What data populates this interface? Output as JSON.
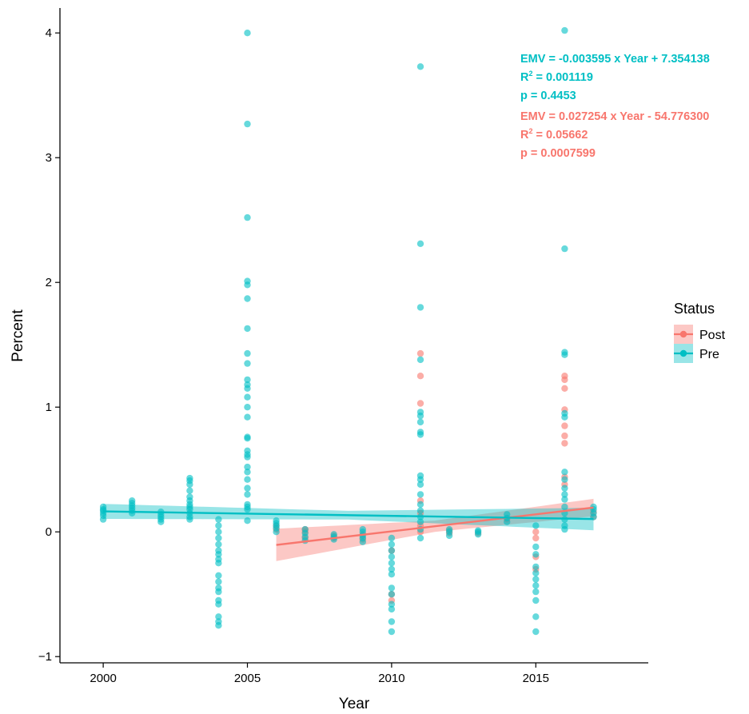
{
  "chart_data": {
    "type": "scatter",
    "xlabel": "Year",
    "ylabel": "Percent",
    "xlim": [
      1998.5,
      2018.9
    ],
    "ylim": [
      -1.05,
      4.2
    ],
    "x_ticks": [
      2000,
      2005,
      2010,
      2015
    ],
    "y_ticks": [
      -1,
      0,
      1,
      2,
      3,
      4
    ],
    "grid": false,
    "legend": {
      "title": "Status",
      "position": "right",
      "entries": [
        {
          "name": "Post",
          "color": "#F8766D"
        },
        {
          "name": "Pre",
          "color": "#00BFC4"
        }
      ]
    },
    "annotations": {
      "pre": {
        "color": "#00BFC4",
        "equation": "EMV = -0.003595 x Year + 7.354138",
        "r2_prefix": "R",
        "r2_exp": "2",
        "r2_value": " = 0.001119",
        "p": "p = 0.4453"
      },
      "post": {
        "color": "#F8766D",
        "equation": "EMV = 0.027254 x Year - 54.776300",
        "r2_prefix": "R",
        "r2_exp": "2",
        "r2_value": "  = 0.05662",
        "p": "p = 0.0007599"
      }
    },
    "series": [
      {
        "name": "Pre",
        "color": "#00BFC4",
        "fit": {
          "slope": -0.003595,
          "intercept": 7.354138,
          "x_range": [
            2000,
            2017
          ],
          "ci_halfwidth": [
            0.06,
            0.035,
            0.09
          ]
        },
        "points": [
          [
            2000,
            0.1
          ],
          [
            2000,
            0.13
          ],
          [
            2000,
            0.15
          ],
          [
            2000,
            0.17
          ],
          [
            2000,
            0.18
          ],
          [
            2000,
            0.2
          ],
          [
            2001,
            0.15
          ],
          [
            2001,
            0.17
          ],
          [
            2001,
            0.19
          ],
          [
            2001,
            0.21
          ],
          [
            2001,
            0.23
          ],
          [
            2001,
            0.25
          ],
          [
            2002,
            0.08
          ],
          [
            2002,
            0.1
          ],
          [
            2002,
            0.12
          ],
          [
            2002,
            0.14
          ],
          [
            2002,
            0.16
          ],
          [
            2003,
            0.1
          ],
          [
            2003,
            0.12
          ],
          [
            2003,
            0.15
          ],
          [
            2003,
            0.18
          ],
          [
            2003,
            0.2
          ],
          [
            2003,
            0.22
          ],
          [
            2003,
            0.25
          ],
          [
            2003,
            0.28
          ],
          [
            2003,
            0.33
          ],
          [
            2003,
            0.38
          ],
          [
            2003,
            0.41
          ],
          [
            2003,
            0.43
          ],
          [
            2004,
            -0.75
          ],
          [
            2004,
            -0.72
          ],
          [
            2004,
            -0.68
          ],
          [
            2004,
            -0.58
          ],
          [
            2004,
            -0.55
          ],
          [
            2004,
            -0.48
          ],
          [
            2004,
            -0.45
          ],
          [
            2004,
            -0.4
          ],
          [
            2004,
            -0.35
          ],
          [
            2004,
            -0.25
          ],
          [
            2004,
            -0.22
          ],
          [
            2004,
            -0.18
          ],
          [
            2004,
            -0.15
          ],
          [
            2004,
            -0.1
          ],
          [
            2004,
            -0.05
          ],
          [
            2004,
            0.0
          ],
          [
            2004,
            0.05
          ],
          [
            2004,
            0.1
          ],
          [
            2005,
            0.09
          ],
          [
            2005,
            0.18
          ],
          [
            2005,
            0.2
          ],
          [
            2005,
            0.22
          ],
          [
            2005,
            0.3
          ],
          [
            2005,
            0.35
          ],
          [
            2005,
            0.42
          ],
          [
            2005,
            0.48
          ],
          [
            2005,
            0.52
          ],
          [
            2005,
            0.6
          ],
          [
            2005,
            0.62
          ],
          [
            2005,
            0.65
          ],
          [
            2005,
            0.75
          ],
          [
            2005,
            0.76
          ],
          [
            2005,
            0.92
          ],
          [
            2005,
            1.0
          ],
          [
            2005,
            1.08
          ],
          [
            2005,
            1.15
          ],
          [
            2005,
            1.18
          ],
          [
            2005,
            1.22
          ],
          [
            2005,
            1.35
          ],
          [
            2005,
            1.43
          ],
          [
            2005,
            1.63
          ],
          [
            2005,
            1.87
          ],
          [
            2005,
            1.98
          ],
          [
            2005,
            2.01
          ],
          [
            2005,
            2.52
          ],
          [
            2005,
            3.27
          ],
          [
            2005,
            4.0
          ],
          [
            2006,
            0.0
          ],
          [
            2006,
            0.03
          ],
          [
            2006,
            0.05
          ],
          [
            2006,
            0.07
          ],
          [
            2006,
            0.09
          ],
          [
            2007,
            -0.07
          ],
          [
            2007,
            -0.04
          ],
          [
            2007,
            -0.01
          ],
          [
            2007,
            0.02
          ],
          [
            2008,
            -0.06
          ],
          [
            2008,
            -0.04
          ],
          [
            2008,
            -0.02
          ],
          [
            2009,
            -0.08
          ],
          [
            2009,
            -0.05
          ],
          [
            2009,
            -0.03
          ],
          [
            2009,
            0.0
          ],
          [
            2009,
            0.02
          ],
          [
            2010,
            -0.8
          ],
          [
            2010,
            -0.72
          ],
          [
            2010,
            -0.62
          ],
          [
            2010,
            -0.58
          ],
          [
            2010,
            -0.5
          ],
          [
            2010,
            -0.45
          ],
          [
            2010,
            -0.34
          ],
          [
            2010,
            -0.3
          ],
          [
            2010,
            -0.25
          ],
          [
            2010,
            -0.2
          ],
          [
            2010,
            -0.15
          ],
          [
            2010,
            -0.1
          ],
          [
            2010,
            -0.05
          ],
          [
            2011,
            -0.05
          ],
          [
            2011,
            0.02
          ],
          [
            2011,
            0.08
          ],
          [
            2011,
            0.12
          ],
          [
            2011,
            0.17
          ],
          [
            2011,
            0.22
          ],
          [
            2011,
            0.3
          ],
          [
            2011,
            0.38
          ],
          [
            2011,
            0.42
          ],
          [
            2011,
            0.45
          ],
          [
            2011,
            0.78
          ],
          [
            2011,
            0.8
          ],
          [
            2011,
            0.88
          ],
          [
            2011,
            0.93
          ],
          [
            2011,
            0.96
          ],
          [
            2011,
            1.38
          ],
          [
            2011,
            1.8
          ],
          [
            2011,
            2.31
          ],
          [
            2011,
            3.73
          ],
          [
            2012,
            -0.03
          ],
          [
            2012,
            0.0
          ],
          [
            2012,
            0.02
          ],
          [
            2013,
            -0.02
          ],
          [
            2013,
            0.0
          ],
          [
            2013,
            0.01
          ],
          [
            2014,
            0.08
          ],
          [
            2014,
            0.11
          ],
          [
            2014,
            0.14
          ],
          [
            2015,
            -0.8
          ],
          [
            2015,
            -0.68
          ],
          [
            2015,
            -0.55
          ],
          [
            2015,
            -0.48
          ],
          [
            2015,
            -0.43
          ],
          [
            2015,
            -0.38
          ],
          [
            2015,
            -0.33
          ],
          [
            2015,
            -0.28
          ],
          [
            2015,
            -0.18
          ],
          [
            2015,
            -0.12
          ],
          [
            2015,
            0.05
          ],
          [
            2016,
            0.02
          ],
          [
            2016,
            0.05
          ],
          [
            2016,
            0.1
          ],
          [
            2016,
            0.15
          ],
          [
            2016,
            0.2
          ],
          [
            2016,
            0.26
          ],
          [
            2016,
            0.3
          ],
          [
            2016,
            0.35
          ],
          [
            2016,
            0.42
          ],
          [
            2016,
            0.48
          ],
          [
            2016,
            0.92
          ],
          [
            2016,
            0.95
          ],
          [
            2016,
            1.42
          ],
          [
            2016,
            1.44
          ],
          [
            2016,
            2.27
          ],
          [
            2016,
            4.02
          ],
          [
            2017,
            0.12
          ],
          [
            2017,
            0.15
          ],
          [
            2017,
            0.18
          ],
          [
            2017,
            0.2
          ]
        ]
      },
      {
        "name": "Post",
        "color": "#F8766D",
        "fit": {
          "slope": 0.027254,
          "intercept": -54.7763,
          "x_range": [
            2006,
            2017
          ],
          "ci_halfwidth": [
            0.13,
            0.045,
            0.07
          ]
        },
        "points": [
          [
            2006,
            0.02
          ],
          [
            2006,
            0.05
          ],
          [
            2007,
            -0.05
          ],
          [
            2007,
            0.0
          ],
          [
            2007,
            0.02
          ],
          [
            2008,
            -0.05
          ],
          [
            2008,
            -0.03
          ],
          [
            2009,
            -0.06
          ],
          [
            2009,
            -0.02
          ],
          [
            2010,
            -0.55
          ],
          [
            2010,
            -0.5
          ],
          [
            2010,
            -0.15
          ],
          [
            2011,
            0.0
          ],
          [
            2011,
            0.05
          ],
          [
            2011,
            0.15
          ],
          [
            2011,
            0.25
          ],
          [
            2011,
            1.03
          ],
          [
            2011,
            1.25
          ],
          [
            2011,
            1.43
          ],
          [
            2012,
            -0.01
          ],
          [
            2012,
            0.01
          ],
          [
            2013,
            -0.01
          ],
          [
            2014,
            0.1
          ],
          [
            2015,
            -0.3
          ],
          [
            2015,
            -0.2
          ],
          [
            2015,
            -0.05
          ],
          [
            2015,
            0.0
          ],
          [
            2016,
            0.38
          ],
          [
            2016,
            0.44
          ],
          [
            2016,
            0.71
          ],
          [
            2016,
            0.77
          ],
          [
            2016,
            0.85
          ],
          [
            2016,
            0.98
          ],
          [
            2016,
            1.15
          ],
          [
            2016,
            1.22
          ],
          [
            2016,
            1.25
          ],
          [
            2017,
            0.12
          ],
          [
            2017,
            0.16
          ]
        ]
      }
    ]
  }
}
